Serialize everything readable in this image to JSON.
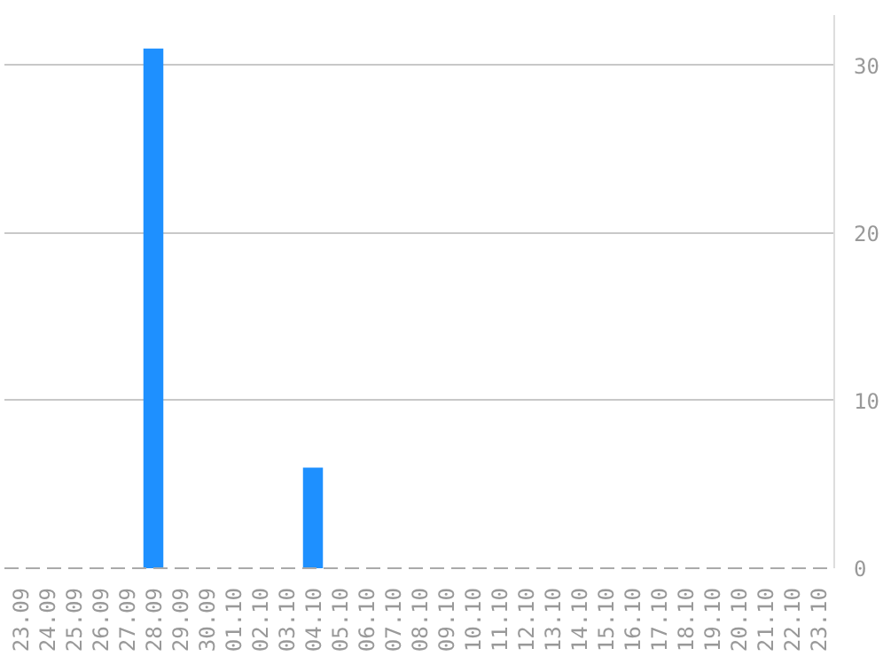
{
  "chart_data": {
    "type": "bar",
    "categories": [
      "23.09",
      "24.09",
      "25.09",
      "26.09",
      "27.09",
      "28.09",
      "29.09",
      "30.09",
      "01.10",
      "02.10",
      "03.10",
      "04.10",
      "05.10",
      "06.10",
      "07.10",
      "08.10",
      "09.10",
      "10.10",
      "11.10",
      "12.10",
      "13.10",
      "14.10",
      "15.10",
      "16.10",
      "17.10",
      "18.10",
      "19.10",
      "20.10",
      "21.10",
      "22.10",
      "23.10"
    ],
    "values": [
      0,
      0,
      0,
      0,
      0,
      31,
      0,
      0,
      0,
      0,
      0,
      6,
      0,
      0,
      0,
      0,
      0,
      0,
      0,
      0,
      0,
      0,
      0,
      0,
      0,
      0,
      0,
      0,
      0,
      0,
      0
    ],
    "color": "#1e90ff",
    "ylim": [
      0,
      33
    ],
    "yticks": [
      0,
      10,
      20,
      30
    ],
    "grid": "y"
  }
}
